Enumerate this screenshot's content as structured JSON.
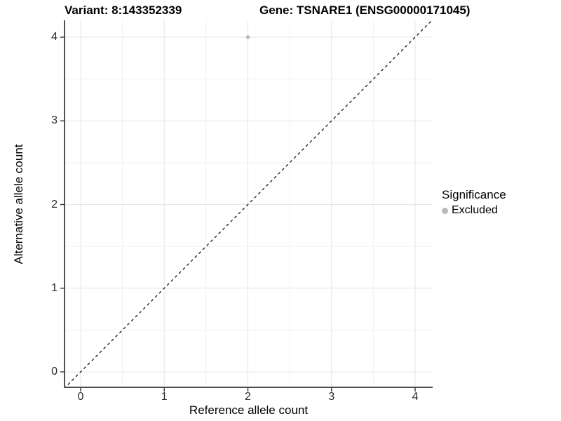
{
  "header": {
    "title_variant": "Variant: 8:143352339",
    "title_gene": "Gene: TSNARE1 (ENSG00000171045)"
  },
  "chart_data": {
    "type": "scatter",
    "title_left": "Variant: 8:143352339",
    "title_right": "Gene: TSNARE1 (ENSG00000171045)",
    "xlabel": "Reference allele count",
    "ylabel": "Alternative allele count",
    "xlim": [
      -0.2,
      4.2
    ],
    "ylim": [
      -0.2,
      4.2
    ],
    "x_ticks": [
      0,
      1,
      2,
      3,
      4
    ],
    "y_ticks": [
      0,
      1,
      2,
      3,
      4
    ],
    "x_minor_ticks": [
      0.5,
      1.5,
      2.5,
      3.5
    ],
    "y_minor_ticks": [
      0.5,
      1.5,
      2.5,
      3.5
    ],
    "grid": "major and minor, light gray on white",
    "legend_position": "right",
    "series": [
      {
        "name": "Excluded",
        "color": "#b9b9b9",
        "points": [
          {
            "x": 2,
            "y": 4
          }
        ]
      }
    ],
    "reference_line": {
      "kind": "identity y=x",
      "style": "dashed",
      "color": "#000000"
    }
  },
  "legend": {
    "title": "Significance",
    "entries": [
      {
        "label": "Excluded",
        "color": "#b9b9b9"
      }
    ]
  },
  "colors": {
    "axis_line": "#333333",
    "tick_mark": "#333333",
    "grid_major": "#e6e6e6",
    "grid_minor": "#f1f1f1",
    "point": "#b9b9b9",
    "background": "#ffffff"
  }
}
